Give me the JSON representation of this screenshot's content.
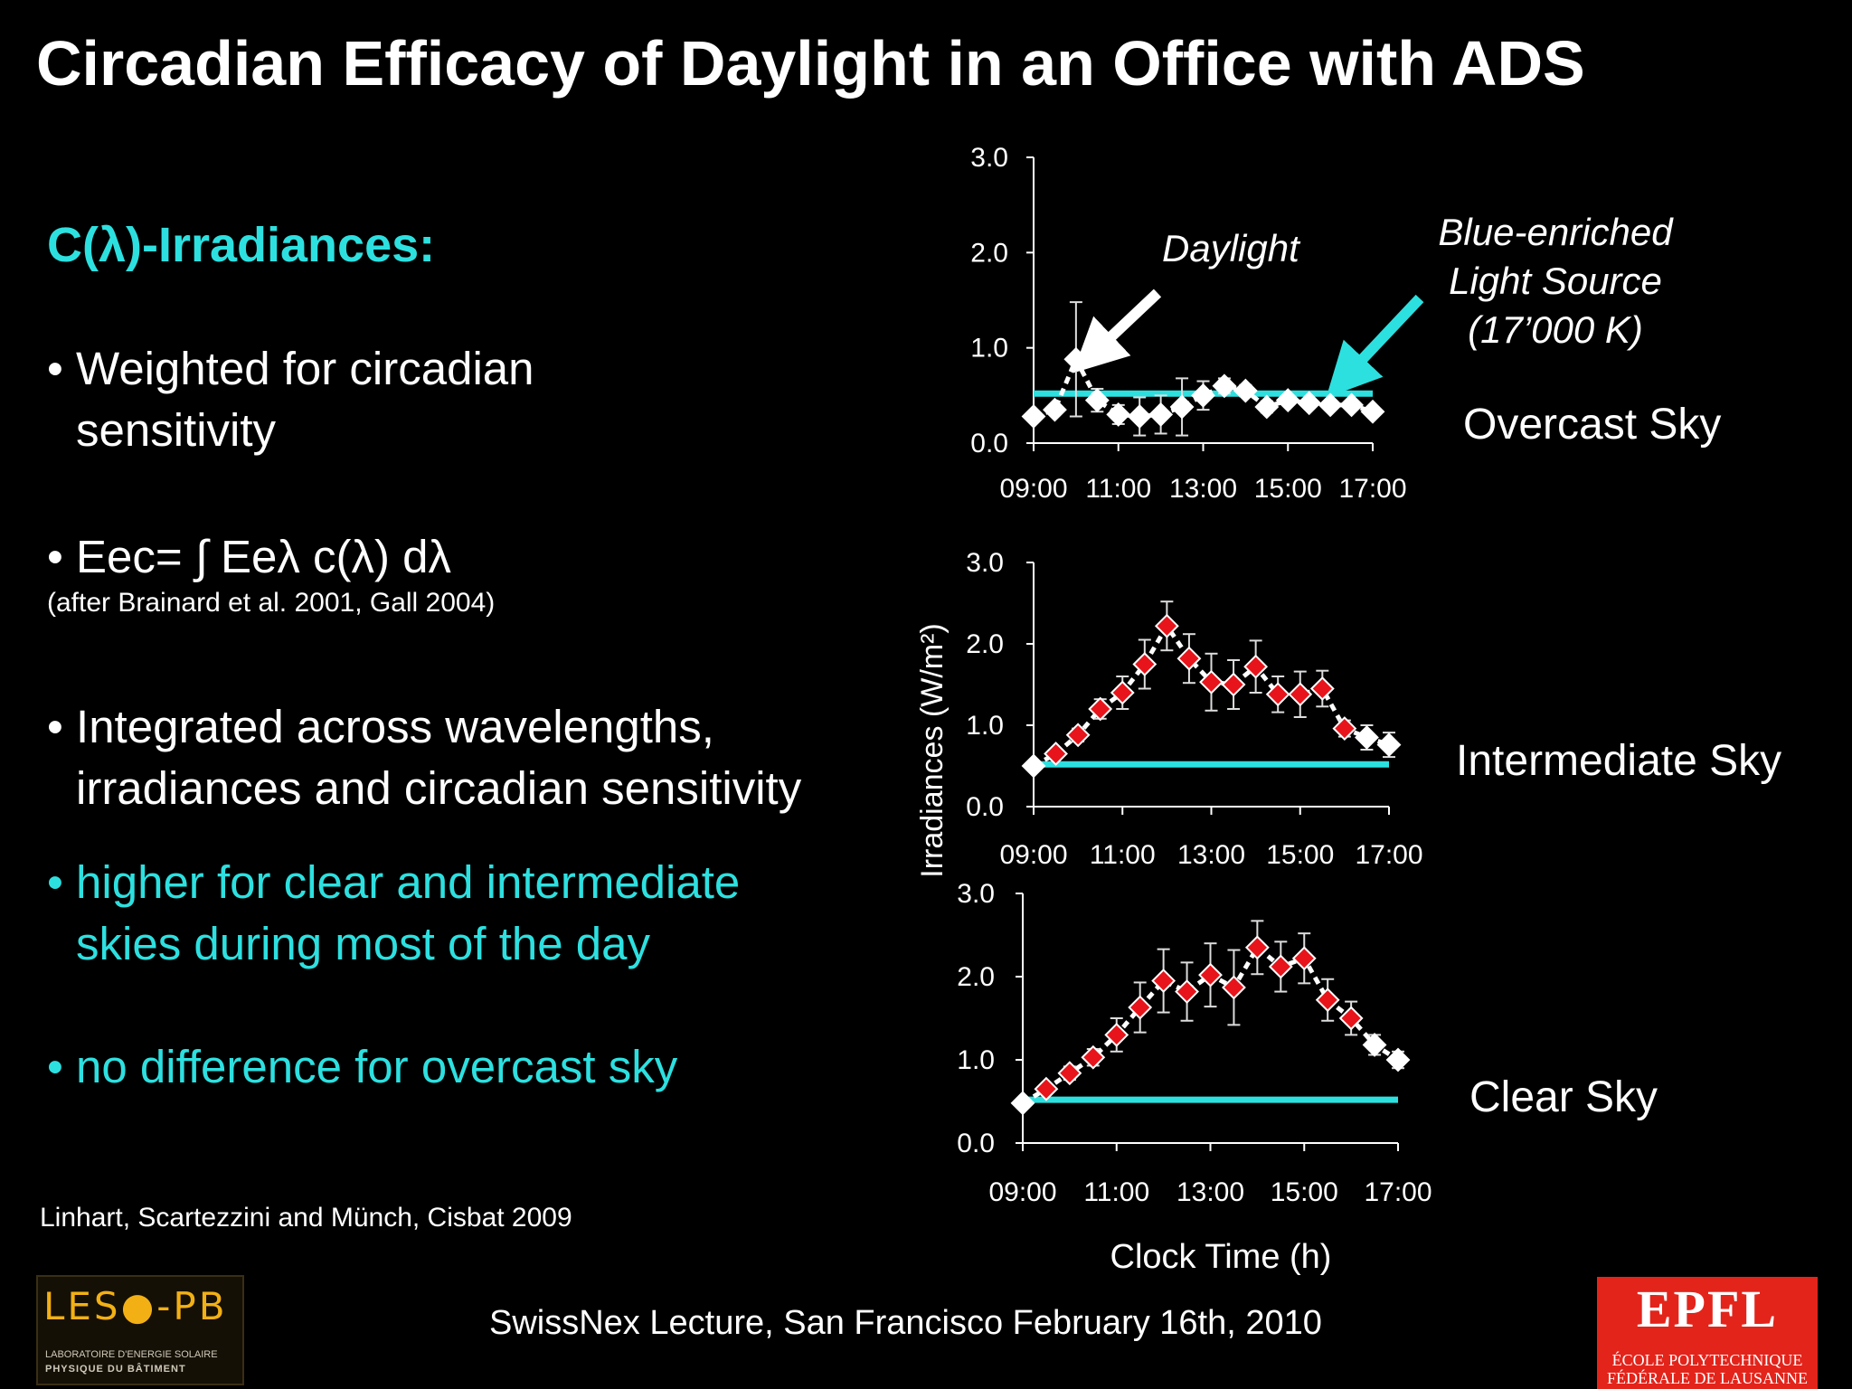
{
  "title": "Circadian Efficacy of Daylight  in an Office with ADS",
  "heading": "C(λ)-Irradiances:",
  "bullets": {
    "b1_line1": "• Weighted for circadian",
    "b1_line2": "sensitivity",
    "b2": "• Eec= ∫ Eeλ c(λ) dλ",
    "b2_cite": "(after Brainard et al.  2001, Gall 2004)",
    "b3_line1": "• Integrated across wavelengths,",
    "b3_line2": "irradiances and circadian sensitivity",
    "b4_line1": "• higher for clear and intermediate",
    "b4_line2": "skies during most of the day",
    "b5": "• no difference for overcast sky"
  },
  "reference": "Linhart, Scartezzini and Münch,  Cisbat 2009",
  "footer": "SwissNex Lecture, San Francisco February 16th, 2010",
  "annotations": {
    "daylight": "Daylight",
    "source_line1": "Blue-enriched",
    "source_line2": "Light Source",
    "source_line3": "(17’000 K)"
  },
  "sky_labels": {
    "overcast": "Overcast Sky",
    "intermediate": "Intermediate Sky",
    "clear": "Clear Sky"
  },
  "axis_labels": {
    "y": "Irradiances (W/m²)",
    "x": "Clock Time (h)"
  },
  "logos": {
    "leso_word": "LES●-PB",
    "leso_sub1": "LABORATOIRE D'ENERGIE SOLAIRE",
    "leso_sub2": "PHYSIQUE DU BÂTIMENT",
    "epfl_word": "EPFL",
    "epfl_line1": "ÉCOLE POLYTECHNIQUE",
    "epfl_line2": "FÉDÉRALE DE LAUSANNE"
  },
  "colors": {
    "accent_cyan": "#2de0e0",
    "marker_red": "#e8141b",
    "marker_white": "#ffffff",
    "leso_gold": "#f2b015",
    "epfl_red": "#e3241b"
  },
  "chart_data": [
    {
      "type": "line",
      "label": "Overcast Sky",
      "x_ticks": [
        "09:00",
        "11:00",
        "13:00",
        "15:00",
        "17:00"
      ],
      "xlim": [
        9,
        17
      ],
      "ylim": [
        0,
        3
      ],
      "y_ticks": [
        "0.0",
        "1.0",
        "2.0",
        "3.0"
      ],
      "grid": false,
      "marker": "white-diamond",
      "reference_line": 0.52,
      "series": [
        {
          "x": [
            9.0,
            9.5,
            10.0,
            10.5,
            11.0,
            11.5,
            12.0,
            12.5,
            13.0,
            13.5,
            14.0,
            14.5,
            15.0,
            15.5,
            16.0,
            16.5,
            17.0
          ],
          "values": [
            0.28,
            0.35,
            0.88,
            0.45,
            0.3,
            0.28,
            0.3,
            0.38,
            0.5,
            0.6,
            0.55,
            0.38,
            0.45,
            0.42,
            0.4,
            0.4,
            0.33
          ],
          "errors": [
            0.05,
            0.05,
            0.6,
            0.12,
            0.1,
            0.2,
            0.2,
            0.3,
            0.15,
            0.08,
            0.06,
            0.06,
            0.05,
            0.05,
            0.05,
            0.05,
            0.05
          ]
        }
      ]
    },
    {
      "type": "line",
      "label": "Intermediate Sky",
      "x_ticks": [
        "09:00",
        "11:00",
        "13:00",
        "15:00",
        "17:00"
      ],
      "xlim": [
        9,
        17
      ],
      "ylim": [
        0,
        3
      ],
      "y_ticks": [
        "0.0",
        "1.0",
        "2.0",
        "3.0"
      ],
      "grid": false,
      "marker": "red-diamond",
      "reference_line": 0.52,
      "series": [
        {
          "x": [
            9.0,
            9.5,
            10.0,
            10.5,
            11.0,
            11.5,
            12.0,
            12.5,
            13.0,
            13.5,
            14.0,
            14.5,
            15.0,
            15.5,
            16.0,
            16.5,
            17.0
          ],
          "values": [
            0.5,
            0.65,
            0.88,
            1.2,
            1.4,
            1.75,
            2.22,
            1.82,
            1.53,
            1.5,
            1.72,
            1.38,
            1.38,
            1.45,
            0.96,
            0.85,
            0.76
          ],
          "errors": [
            0.04,
            0.05,
            0.08,
            0.12,
            0.2,
            0.3,
            0.3,
            0.3,
            0.35,
            0.3,
            0.32,
            0.22,
            0.28,
            0.22,
            0.1,
            0.15,
            0.15
          ]
        }
      ]
    },
    {
      "type": "line",
      "label": "Clear Sky",
      "x_ticks": [
        "09:00",
        "11:00",
        "13:00",
        "15:00",
        "17:00"
      ],
      "xlim": [
        9,
        17
      ],
      "ylim": [
        0,
        3
      ],
      "y_ticks": [
        "0.0",
        "1.0",
        "2.0",
        "3.0"
      ],
      "grid": false,
      "marker": "red-diamond",
      "reference_line": 0.52,
      "series": [
        {
          "x": [
            9.0,
            9.5,
            10.0,
            10.5,
            11.0,
            11.5,
            12.0,
            12.5,
            13.0,
            13.5,
            14.0,
            14.5,
            15.0,
            15.5,
            16.0,
            16.5,
            17.0
          ],
          "values": [
            0.48,
            0.65,
            0.84,
            1.03,
            1.3,
            1.63,
            1.95,
            1.82,
            2.02,
            1.87,
            2.35,
            2.12,
            2.22,
            1.72,
            1.5,
            1.18,
            1.0
          ],
          "errors": [
            0.03,
            0.05,
            0.08,
            0.1,
            0.2,
            0.3,
            0.38,
            0.35,
            0.38,
            0.45,
            0.32,
            0.3,
            0.3,
            0.25,
            0.2,
            0.12,
            0.1
          ]
        }
      ]
    }
  ]
}
